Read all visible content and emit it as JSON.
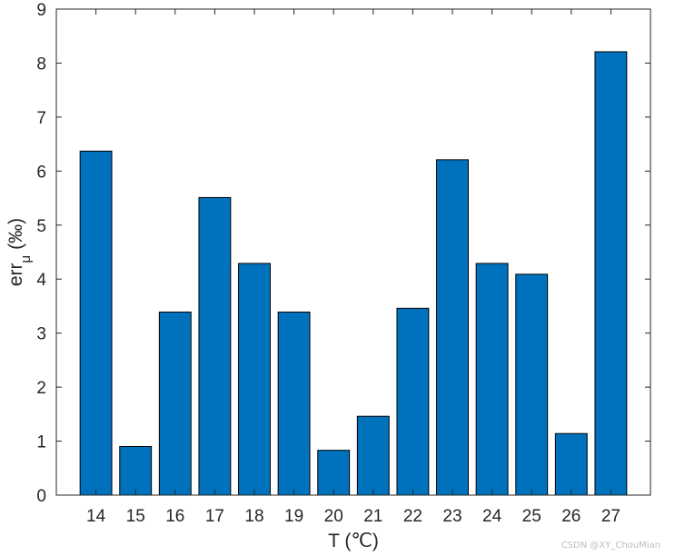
{
  "chart_data": {
    "type": "bar",
    "categories": [
      "14",
      "15",
      "16",
      "17",
      "18",
      "19",
      "20",
      "21",
      "22",
      "23",
      "24",
      "25",
      "26",
      "27"
    ],
    "values": [
      6.37,
      0.9,
      3.39,
      5.51,
      4.29,
      3.39,
      0.83,
      1.46,
      3.46,
      6.21,
      4.29,
      4.09,
      1.14,
      8.21
    ],
    "xlabel": "T (℃)",
    "ylabel": {
      "main": "err",
      "sub": "μ",
      "unit": "(‰)"
    },
    "ylim": [
      0,
      9
    ],
    "yticks": [
      0,
      1,
      2,
      3,
      4,
      5,
      6,
      7,
      8,
      9
    ],
    "grid": false,
    "bar_color": "#0072BD",
    "edge_color": "#000000"
  },
  "watermark": "CSDN @XY_ChouMian"
}
